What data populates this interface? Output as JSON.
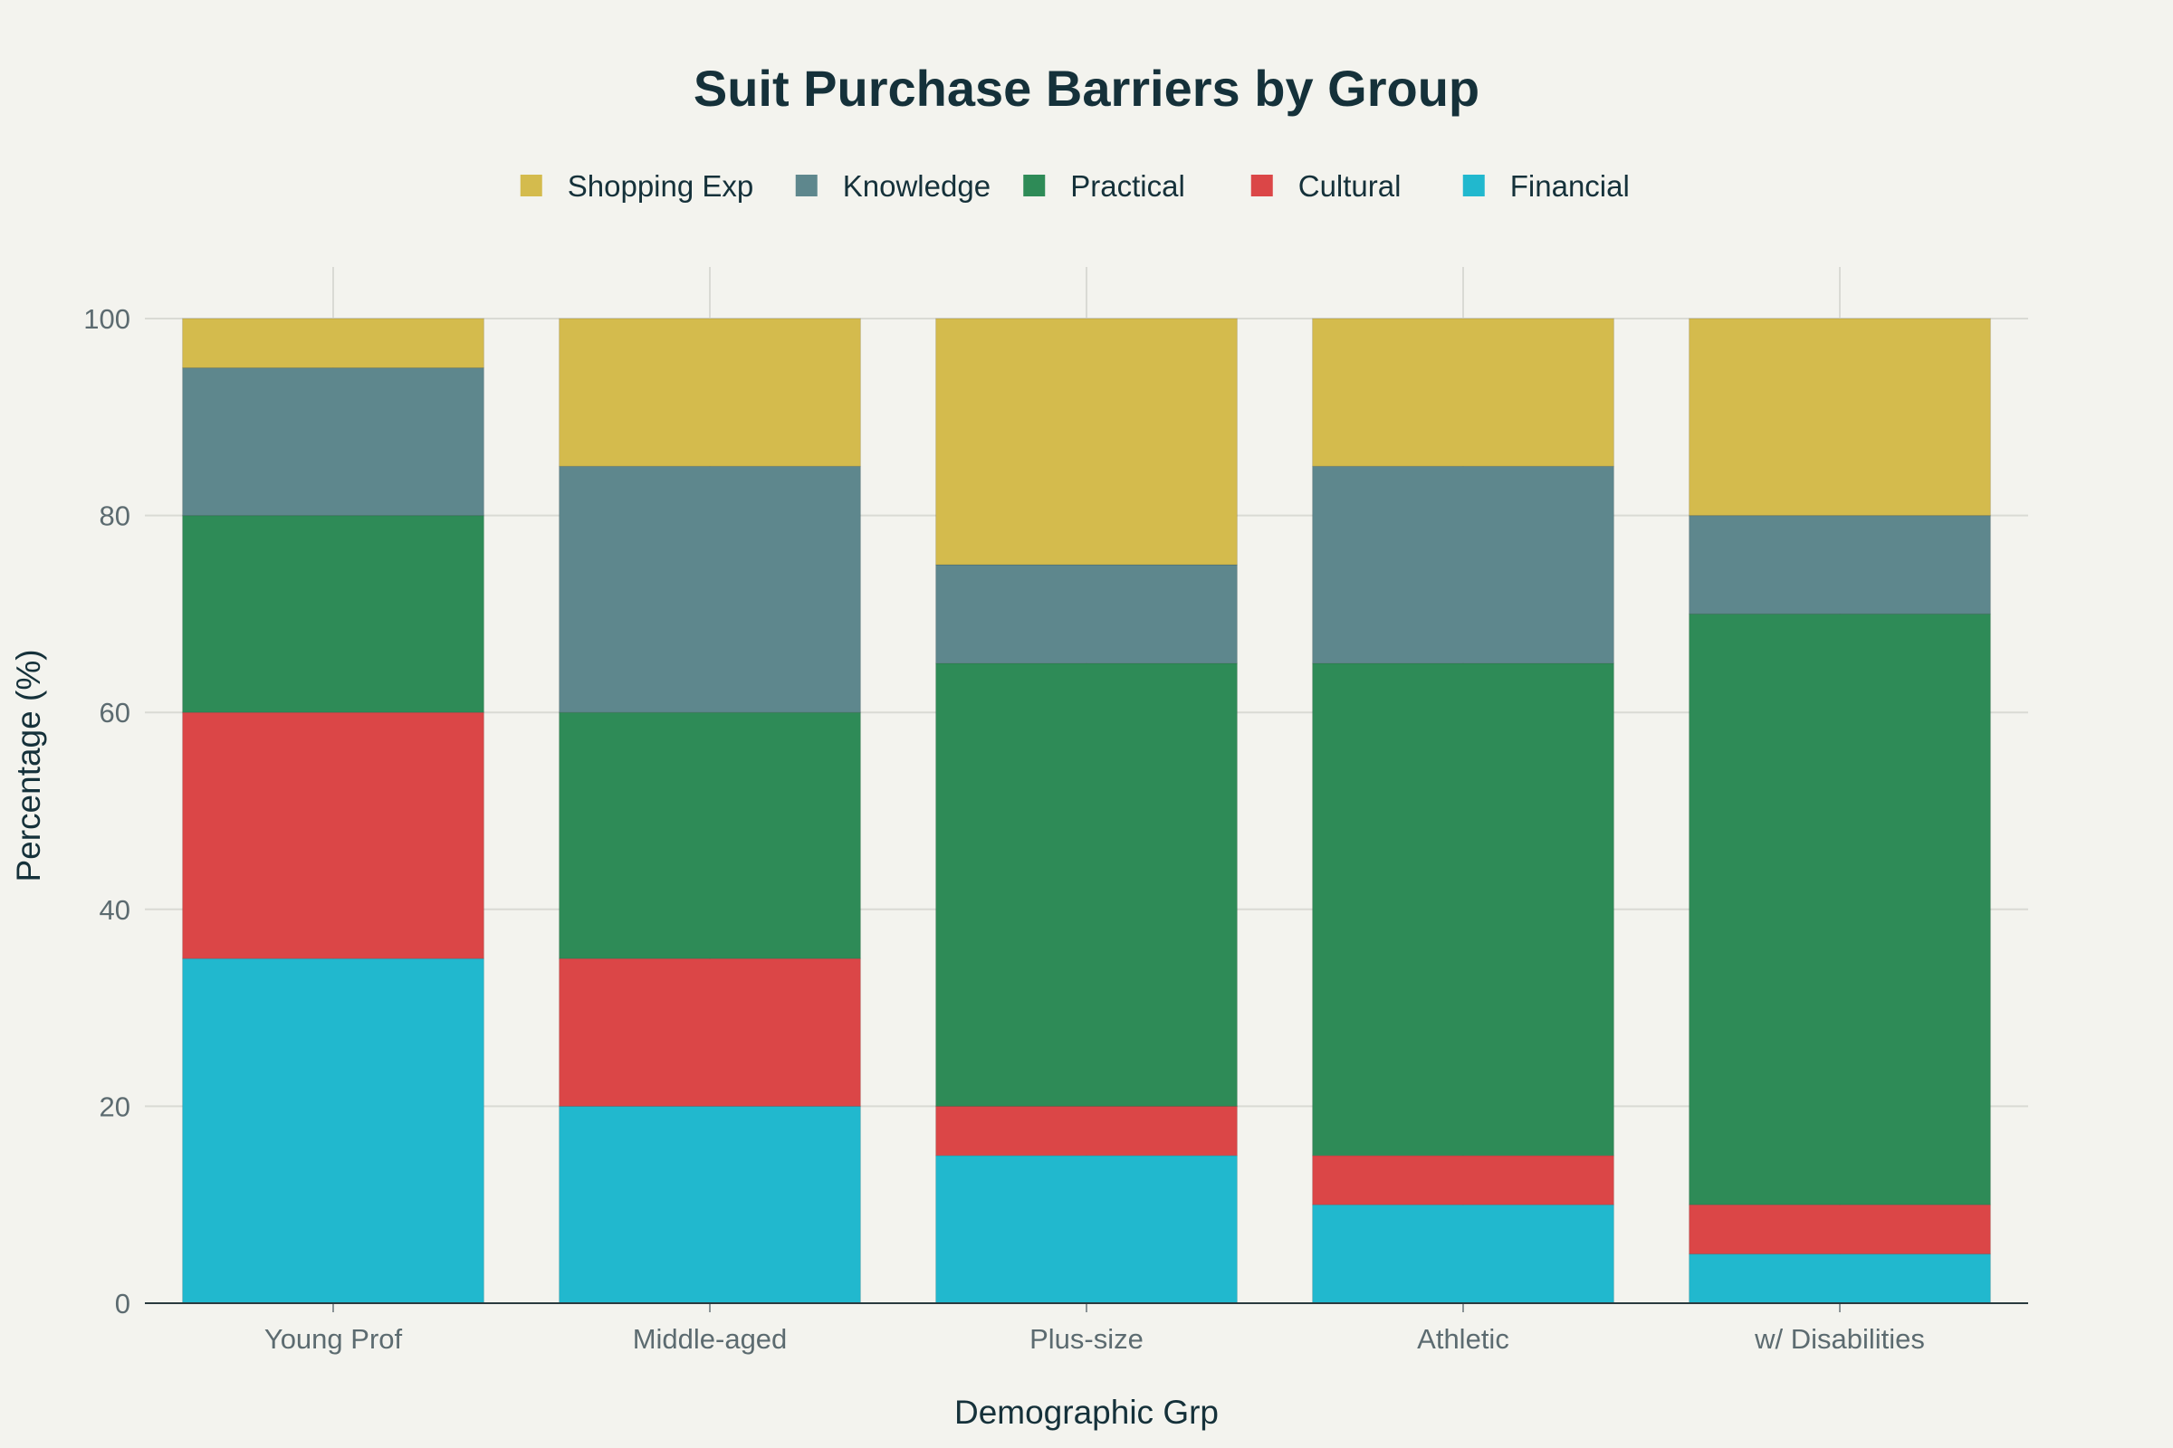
{
  "chart_data": {
    "type": "bar",
    "stacked": true,
    "title": "Suit Purchase Barriers by Group",
    "xlabel": "Demographic Grp",
    "ylabel": "Percentage (%)",
    "ylim": [
      0,
      100
    ],
    "yticks": [
      0,
      20,
      40,
      60,
      80,
      100
    ],
    "grid": true,
    "legend_position": "top-center",
    "categories": [
      "Young Prof",
      "Middle-aged",
      "Plus-size",
      "Athletic",
      "w/ Disabilities"
    ],
    "series": [
      {
        "name": "Financial",
        "color": "#21b8ce",
        "values": [
          35,
          20,
          15,
          10,
          5
        ]
      },
      {
        "name": "Cultural",
        "color": "#db4647",
        "values": [
          25,
          15,
          5,
          5,
          5
        ]
      },
      {
        "name": "Practical",
        "color": "#2e8b57",
        "values": [
          20,
          25,
          45,
          50,
          60
        ]
      },
      {
        "name": "Knowledge",
        "color": "#5e878d",
        "values": [
          15,
          25,
          10,
          20,
          10
        ]
      },
      {
        "name": "Shopping Exp",
        "color": "#d4bb4d",
        "values": [
          5,
          15,
          25,
          15,
          20
        ]
      }
    ],
    "legend_order": [
      "Shopping Exp",
      "Knowledge",
      "Practical",
      "Cultural",
      "Financial"
    ]
  }
}
